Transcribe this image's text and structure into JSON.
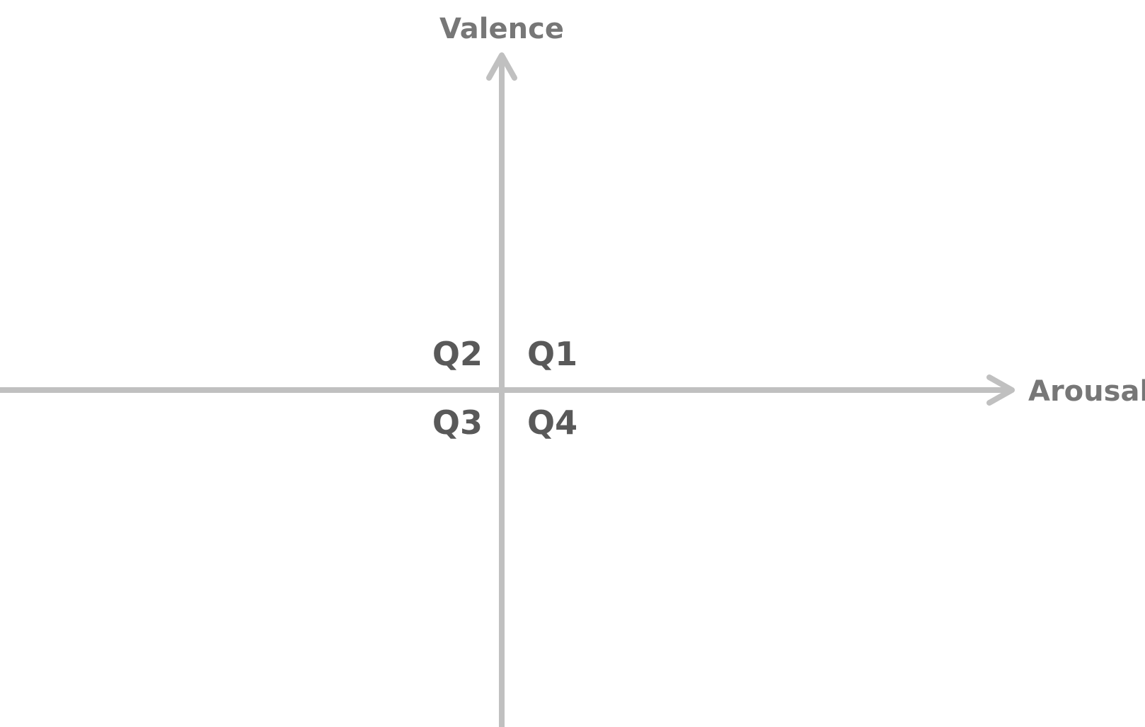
{
  "axes": {
    "vertical_label": "Valence",
    "horizontal_label": "Arousal"
  },
  "quadrants": {
    "q1": "Q1",
    "q2": "Q2",
    "q3": "Q3",
    "q4": "Q4"
  },
  "colors": {
    "axis": "#c0c0c0",
    "axis_label": "#777777",
    "quadrant_label": "#595959",
    "background": "#ffffff"
  }
}
